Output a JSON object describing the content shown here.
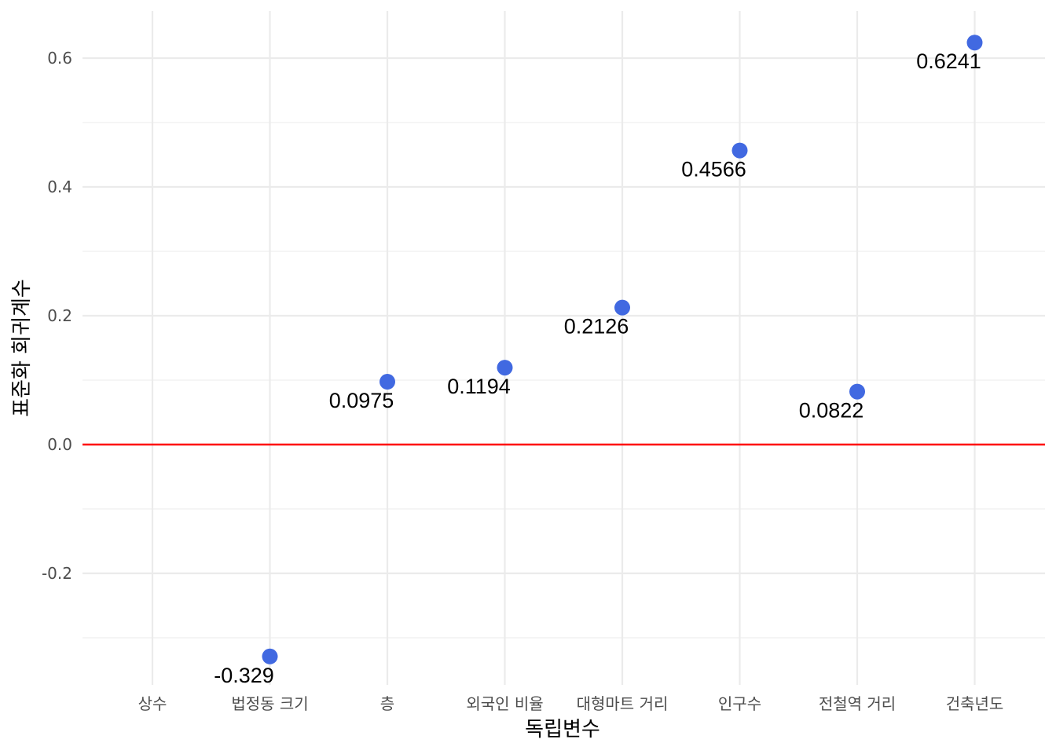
{
  "chart_data": {
    "type": "scatter",
    "title": "",
    "xlabel": "독립변수",
    "ylabel": "표준화 회귀계수",
    "categories": [
      "상수",
      "법정동 크기",
      "층",
      "외국인 비율",
      "대형마트 거리",
      "인구수",
      "전철역 거리",
      "건축년도"
    ],
    "points": [
      {
        "category": "법정동 크기",
        "value": -0.329,
        "label": "-0.329"
      },
      {
        "category": "층",
        "value": 0.0975,
        "label": "0.0975"
      },
      {
        "category": "외국인 비율",
        "value": 0.1194,
        "label": "0.1194"
      },
      {
        "category": "대형마트 거리",
        "value": 0.2126,
        "label": "0.2126"
      },
      {
        "category": "인구수",
        "value": 0.4566,
        "label": "0.4566"
      },
      {
        "category": "전철역 거리",
        "value": 0.0822,
        "label": "0.0822"
      },
      {
        "category": "건축년도",
        "value": 0.6241,
        "label": "0.6241"
      }
    ],
    "y_ticks": [
      -0.2,
      0.0,
      0.2,
      0.4,
      0.6
    ],
    "y_tick_labels": [
      "-0.2",
      "0.0",
      "0.2",
      "0.4",
      "0.6"
    ],
    "ylim": [
      -0.37,
      0.67
    ],
    "reference_line": {
      "y": 0,
      "color": "#ff0000"
    },
    "point_color": "#4169e1",
    "grid": true,
    "legend": "none"
  }
}
